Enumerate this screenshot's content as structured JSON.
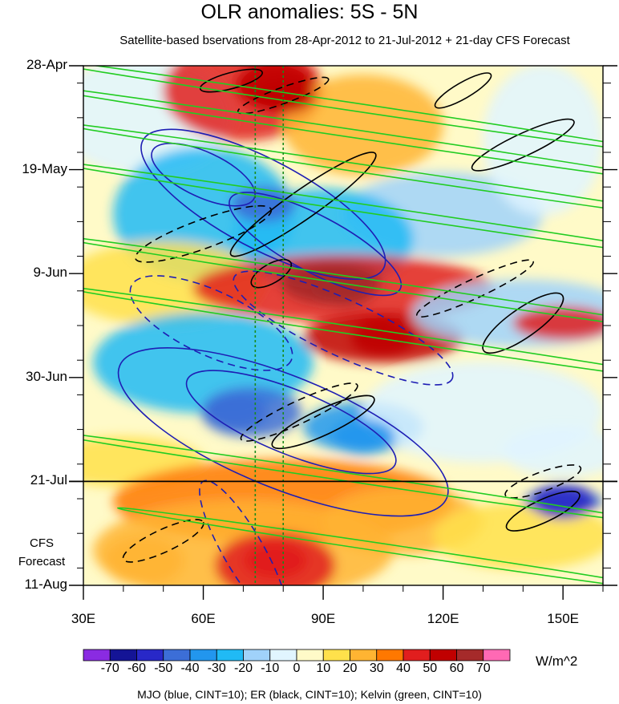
{
  "chart_data": {
    "type": "heatmap",
    "title": "OLR anomalies: 5S - 5N",
    "subtitle": "Satellite-based bservations from 28-Apr-2012 to 21-Jul-2012 + 21-day CFS Forecast",
    "x_axis": {
      "range": [
        30,
        160
      ],
      "ticks": [
        "30E",
        "60E",
        "90E",
        "120E",
        "150E"
      ],
      "tick_values": [
        30,
        60,
        90,
        120,
        150
      ]
    },
    "y_axis": {
      "range_days": [
        0,
        105
      ],
      "ticks": [
        "28-Apr",
        "19-May",
        "9-Jun",
        "30-Jun",
        "21-Jul",
        "11-Aug"
      ],
      "tick_days": [
        0,
        21,
        42,
        63,
        84,
        105
      ]
    },
    "forecast_label": [
      "CFS",
      "Forecast"
    ],
    "observation_end_line": "21-Jul",
    "reference_longitudes": [
      73,
      80
    ],
    "colorbar": {
      "labels": [
        "-70",
        "-60",
        "-50",
        "-40",
        "-30",
        "-20",
        "-10",
        "0",
        "10",
        "20",
        "30",
        "40",
        "50",
        "60",
        "70"
      ],
      "colors": [
        "#8a2be2",
        "#141496",
        "#2828c8",
        "#3c6ed7",
        "#2296ee",
        "#20baf5",
        "#a0d2fa",
        "#e1f5ff",
        "#fffac8",
        "#ffe14b",
        "#ffb432",
        "#ff7800",
        "#e11e1e",
        "#c00000",
        "#a52a2a",
        "#ff69b4"
      ],
      "units": "W/m^2"
    },
    "contours_note": "MJO (blue, CINT=10); ER (black, CINT=10); Kelvin (green, CINT=10)",
    "series": [
      {
        "name": "MJO",
        "color": "#1e1eb4"
      },
      {
        "name": "ER",
        "color": "#000000"
      },
      {
        "name": "Kelvin",
        "color": "#22cc22"
      }
    ],
    "anomaly_features": [
      {
        "label": "positive",
        "lon": 80,
        "day": 6,
        "value": 50
      },
      {
        "label": "positive",
        "lon": 95,
        "day": 45,
        "value": 65
      },
      {
        "label": "positive",
        "lon": 105,
        "day": 55,
        "value": 50
      },
      {
        "label": "positive",
        "lon": 78,
        "day": 100,
        "value": 40
      },
      {
        "label": "negative",
        "lon": 68,
        "day": 70,
        "value": -50
      },
      {
        "label": "negative",
        "lon": 75,
        "day": 28,
        "value": -50
      },
      {
        "label": "negative",
        "lon": 100,
        "day": 75,
        "value": -40
      },
      {
        "label": "negative",
        "lon": 150,
        "day": 88,
        "value": -60
      }
    ]
  }
}
